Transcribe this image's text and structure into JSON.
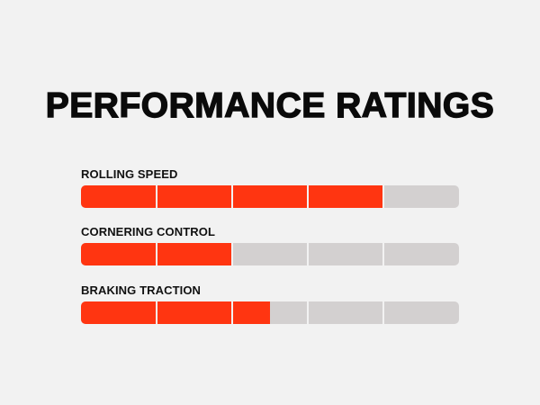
{
  "title": "PERFORMANCE RATINGS",
  "colors": {
    "background": "#f2f2f2",
    "fill": "#ff3511",
    "track": "#d3d0d0",
    "title": "#0a0a0a"
  },
  "ratings": [
    {
      "label": "ROLLING SPEED",
      "value": 0.8,
      "segments": 5
    },
    {
      "label": "CORNERING CONTROL",
      "value": 0.4,
      "segments": 5
    },
    {
      "label": "BRAKING TRACTION",
      "value": 0.5,
      "segments": 5
    }
  ]
}
